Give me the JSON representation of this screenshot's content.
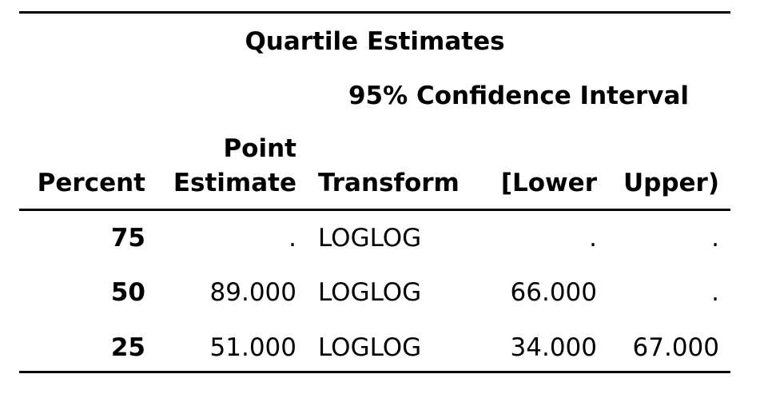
{
  "table": {
    "title": "Quartile Estimates",
    "spanning_header": "95% Confidence Interval",
    "headers": {
      "percent": "Percent",
      "point_line1": "Point",
      "point_line2": "Estimate",
      "transform": "Transform",
      "lower": "[Lower",
      "upper": "Upper)"
    },
    "rows": [
      {
        "percent": "75",
        "point": ".",
        "transform": "LOGLOG",
        "lower": ".",
        "upper": "."
      },
      {
        "percent": "50",
        "point": "89.000",
        "transform": "LOGLOG",
        "lower": "66.000",
        "upper": "."
      },
      {
        "percent": "25",
        "point": "51.000",
        "transform": "LOGLOG",
        "lower": "34.000",
        "upper": "67.000"
      }
    ]
  }
}
